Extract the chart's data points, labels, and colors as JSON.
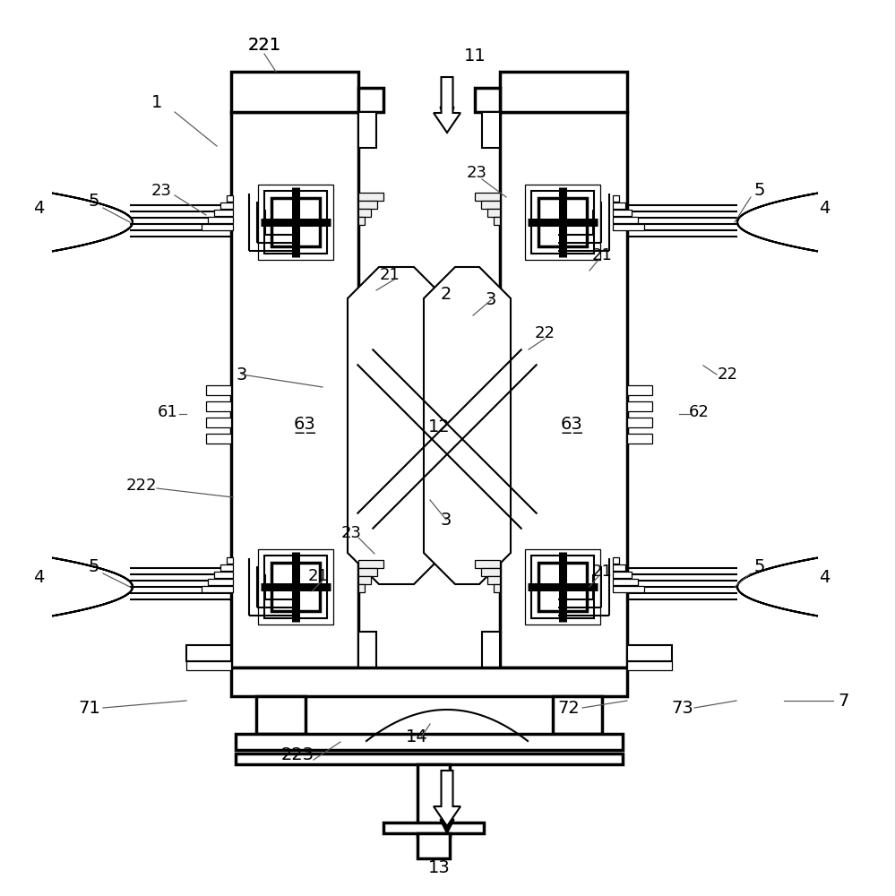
{
  "bg": "#ffffff",
  "black": "#000000",
  "figsize": [
    9.99,
    10.0
  ],
  "dpi": 100,
  "lw_thick": 2.5,
  "lw_med": 1.5,
  "lw_thin": 0.9,
  "lw_hatch": 0.55
}
